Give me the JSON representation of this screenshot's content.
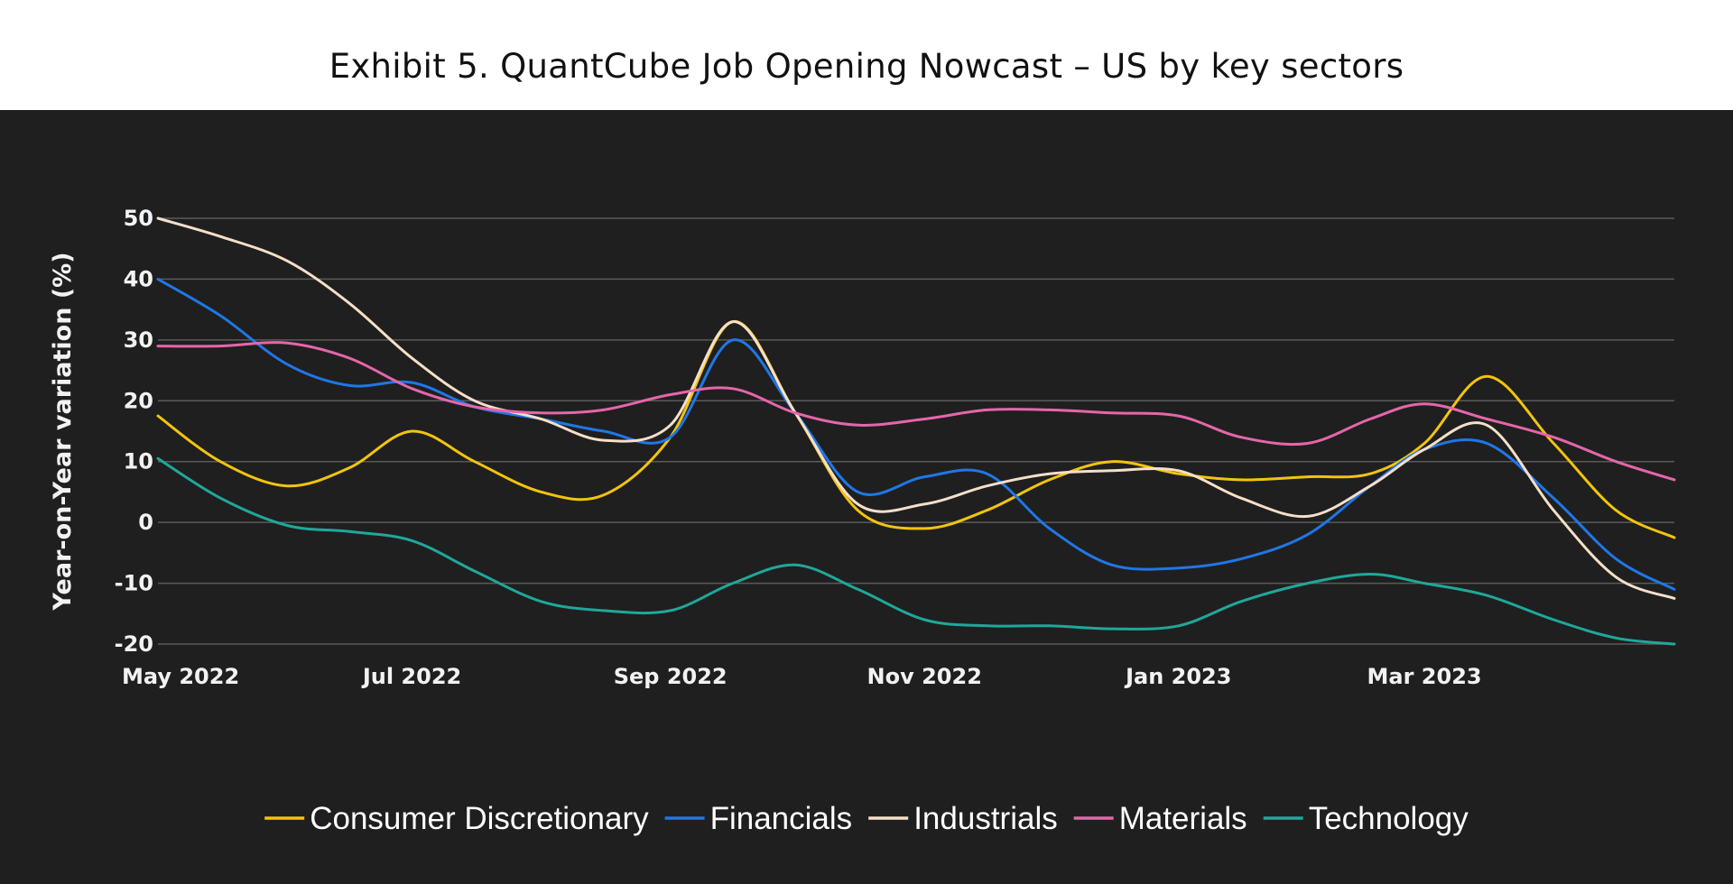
{
  "chart_data": {
    "type": "line",
    "title": "Exhibit 5. QuantCube Job Opening Nowcast – US by key sectors",
    "xlabel": "",
    "ylabel": "Year-on-Year variation (%)",
    "ylim": [
      -20,
      50
    ],
    "yticks": [
      50,
      40,
      30,
      20,
      10,
      0,
      -10,
      -20
    ],
    "xlim": [
      "2022-05-01",
      "2023-04-30"
    ],
    "xticks": [
      {
        "date": "2022-05-01",
        "label": "May 2022"
      },
      {
        "date": "2022-07-01",
        "label": "Jul 2022"
      },
      {
        "date": "2022-09-01",
        "label": "Sep 2022"
      },
      {
        "date": "2022-11-01",
        "label": "Nov 2022"
      },
      {
        "date": "2023-01-01",
        "label": "Jan 2023"
      },
      {
        "date": "2023-03-01",
        "label": "Mar 2023"
      }
    ],
    "grid": true,
    "legend_position": "bottom",
    "x": [
      "2022-05-01",
      "2022-05-16",
      "2022-06-01",
      "2022-06-16",
      "2022-07-01",
      "2022-07-16",
      "2022-08-01",
      "2022-08-16",
      "2022-09-01",
      "2022-09-16",
      "2022-10-01",
      "2022-10-16",
      "2022-11-01",
      "2022-11-16",
      "2022-12-01",
      "2022-12-16",
      "2023-01-01",
      "2023-01-16",
      "2023-02-01",
      "2023-02-16",
      "2023-03-01",
      "2023-03-16",
      "2023-04-01",
      "2023-04-16",
      "2023-04-30"
    ],
    "series": [
      {
        "name": "Consumer Discretionary",
        "color": "#f2c40d",
        "values": [
          17.5,
          10,
          6,
          9,
          15,
          10,
          5,
          4.5,
          14,
          33,
          18,
          2,
          -1,
          2,
          7,
          10,
          8,
          7,
          7.5,
          8,
          13,
          24,
          13,
          2,
          -2.5
        ]
      },
      {
        "name": "Financials",
        "color": "#1f77e6",
        "values": [
          40,
          34,
          26,
          22.5,
          23,
          19,
          17,
          15,
          14,
          30,
          18,
          5,
          7.5,
          8,
          -1,
          -7,
          -7.5,
          -6,
          -2,
          6,
          12,
          13,
          4,
          -6,
          -11
        ]
      },
      {
        "name": "Industrials",
        "color": "#f5dfc8",
        "values": [
          50,
          47,
          43,
          36,
          27,
          20,
          17,
          13.5,
          16,
          33,
          18,
          3,
          3,
          6,
          8,
          8.5,
          8.5,
          4,
          1,
          6,
          12,
          16,
          2,
          -9,
          -12.5
        ]
      },
      {
        "name": "Materials",
        "color": "#e566aa",
        "values": [
          29,
          29,
          29.5,
          27,
          22,
          19,
          18,
          18.5,
          21,
          22,
          18,
          16,
          17,
          18.5,
          18.5,
          18,
          17.5,
          14,
          13,
          17,
          19.5,
          17,
          14,
          10,
          7
        ]
      },
      {
        "name": "Technology",
        "color": "#1fa89a",
        "values": [
          10.5,
          4,
          -0.5,
          -1.5,
          -3,
          -8,
          -13,
          -14.5,
          -14.5,
          -10,
          -7,
          -11,
          -16,
          -17,
          -17,
          -17.5,
          -17,
          -13,
          -10,
          -8.5,
          -10,
          -12,
          -16,
          -19,
          -20
        ]
      }
    ]
  }
}
